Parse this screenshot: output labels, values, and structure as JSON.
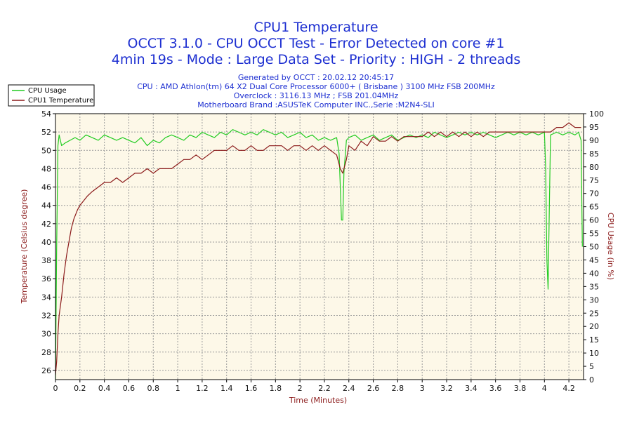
{
  "chart_data": {
    "type": "line",
    "title": "CPU1 Temperature",
    "subtitle_lines": [
      "OCCT 3.1.0 - CPU OCCT Test - Error Detected on core #1",
      "4min 19s - Mode : Large Data Set - Priority : HIGH - 2 threads"
    ],
    "info_lines": [
      "Generated by OCCT : 20.02.12 20:45:17",
      "CPU : AMD Athlon(tm) 64 X2 Dual Core Processor 6000+ ( Brisbane ) 3100 MHz FSB 200MHz",
      "Overclock : 3116.13 MHz ; FSB 201.04MHz",
      "Motherboard Brand :ASUSTeK Computer INC.,Serie :M2N4-SLI"
    ],
    "xlabel": "Time (Minutes)",
    "ylabel": "Temperature (Celsius degree)",
    "y2label": "CPU Usage (in %)",
    "xlim": [
      0,
      4.32
    ],
    "ylim": [
      25,
      54
    ],
    "y2lim": [
      0,
      100
    ],
    "x_ticks": [
      "0",
      "0.2",
      "0.4",
      "0.6",
      "0.8",
      "1",
      "1.2",
      "1.4",
      "1.6",
      "1.8",
      "2",
      "2.2",
      "2.4",
      "2.6",
      "2.8",
      "3",
      "3.2",
      "3.4",
      "3.6",
      "3.8",
      "4",
      "4.2"
    ],
    "y_ticks": [
      "26",
      "28",
      "30",
      "32",
      "34",
      "36",
      "38",
      "40",
      "42",
      "44",
      "46",
      "48",
      "50",
      "52",
      "54"
    ],
    "y2_ticks": [
      "0",
      "5",
      "10",
      "15",
      "20",
      "25",
      "30",
      "35",
      "40",
      "45",
      "50",
      "55",
      "60",
      "65",
      "70",
      "75",
      "80",
      "85",
      "90",
      "95",
      "100"
    ],
    "grid": true,
    "legend_position": "top-left-outside",
    "colors": {
      "usage": "#22cc22",
      "temperature": "#8b1a1a",
      "plot_bg": "#fdf8e8",
      "grid": "#9a9a9a",
      "title": "#1d2fd1"
    },
    "series": [
      {
        "name": "CPU Usage",
        "axis": "right",
        "points": [
          [
            0,
            0
          ],
          [
            0.01,
            50
          ],
          [
            0.02,
            88
          ],
          [
            0.03,
            92
          ],
          [
            0.05,
            88
          ],
          [
            0.08,
            89
          ],
          [
            0.12,
            90
          ],
          [
            0.16,
            91
          ],
          [
            0.2,
            90
          ],
          [
            0.25,
            92
          ],
          [
            0.3,
            91
          ],
          [
            0.35,
            90
          ],
          [
            0.4,
            92
          ],
          [
            0.45,
            91
          ],
          [
            0.5,
            90
          ],
          [
            0.55,
            91
          ],
          [
            0.6,
            90
          ],
          [
            0.65,
            89
          ],
          [
            0.7,
            91
          ],
          [
            0.75,
            88
          ],
          [
            0.8,
            90
          ],
          [
            0.85,
            89
          ],
          [
            0.9,
            91
          ],
          [
            0.95,
            92
          ],
          [
            1,
            91
          ],
          [
            1.05,
            90
          ],
          [
            1.1,
            92
          ],
          [
            1.15,
            91
          ],
          [
            1.2,
            93
          ],
          [
            1.25,
            92
          ],
          [
            1.3,
            91
          ],
          [
            1.35,
            93
          ],
          [
            1.4,
            92
          ],
          [
            1.45,
            94
          ],
          [
            1.5,
            93
          ],
          [
            1.55,
            92
          ],
          [
            1.6,
            93
          ],
          [
            1.65,
            92
          ],
          [
            1.7,
            94
          ],
          [
            1.75,
            93
          ],
          [
            1.8,
            92
          ],
          [
            1.85,
            93
          ],
          [
            1.9,
            91
          ],
          [
            1.95,
            92
          ],
          [
            2,
            93
          ],
          [
            2.05,
            91
          ],
          [
            2.1,
            92
          ],
          [
            2.15,
            90
          ],
          [
            2.2,
            91
          ],
          [
            2.25,
            90
          ],
          [
            2.3,
            91
          ],
          [
            2.32,
            85
          ],
          [
            2.34,
            60
          ],
          [
            2.35,
            60
          ],
          [
            2.36,
            78
          ],
          [
            2.38,
            90
          ],
          [
            2.4,
            91
          ],
          [
            2.45,
            92
          ],
          [
            2.5,
            90
          ],
          [
            2.55,
            91
          ],
          [
            2.6,
            92
          ],
          [
            2.65,
            90
          ],
          [
            2.7,
            91
          ],
          [
            2.75,
            92
          ],
          [
            2.8,
            90
          ],
          [
            2.85,
            91
          ],
          [
            2.9,
            92
          ],
          [
            2.95,
            91
          ],
          [
            3,
            92
          ],
          [
            3.05,
            91
          ],
          [
            3.1,
            93
          ],
          [
            3.15,
            92
          ],
          [
            3.2,
            91
          ],
          [
            3.25,
            92
          ],
          [
            3.3,
            93
          ],
          [
            3.35,
            92
          ],
          [
            3.4,
            93
          ],
          [
            3.45,
            92
          ],
          [
            3.5,
            93
          ],
          [
            3.55,
            92
          ],
          [
            3.6,
            91
          ],
          [
            3.65,
            92
          ],
          [
            3.7,
            93
          ],
          [
            3.75,
            92
          ],
          [
            3.8,
            93
          ],
          [
            3.85,
            92
          ],
          [
            3.9,
            93
          ],
          [
            3.95,
            92
          ],
          [
            4,
            93
          ],
          [
            4.01,
            80
          ],
          [
            4.02,
            45
          ],
          [
            4.03,
            34
          ],
          [
            4.04,
            65
          ],
          [
            4.05,
            92
          ],
          [
            4.1,
            93
          ],
          [
            4.15,
            92
          ],
          [
            4.2,
            93
          ],
          [
            4.25,
            92
          ],
          [
            4.28,
            93
          ],
          [
            4.3,
            90
          ],
          [
            4.31,
            50
          ]
        ]
      },
      {
        "name": "CPU1 Temperature",
        "axis": "left",
        "points": [
          [
            0,
            25.5
          ],
          [
            0.01,
            27
          ],
          [
            0.02,
            30
          ],
          [
            0.03,
            32
          ],
          [
            0.05,
            34
          ],
          [
            0.07,
            36.5
          ],
          [
            0.09,
            38.5
          ],
          [
            0.11,
            40
          ],
          [
            0.13,
            41.5
          ],
          [
            0.15,
            42.5
          ],
          [
            0.18,
            43.5
          ],
          [
            0.2,
            44
          ],
          [
            0.23,
            44.5
          ],
          [
            0.26,
            45
          ],
          [
            0.3,
            45.5
          ],
          [
            0.35,
            46
          ],
          [
            0.4,
            46.5
          ],
          [
            0.45,
            46.5
          ],
          [
            0.5,
            47
          ],
          [
            0.55,
            46.5
          ],
          [
            0.6,
            47
          ],
          [
            0.65,
            47.5
          ],
          [
            0.7,
            47.5
          ],
          [
            0.75,
            48
          ],
          [
            0.8,
            47.5
          ],
          [
            0.85,
            48
          ],
          [
            0.9,
            48
          ],
          [
            0.95,
            48
          ],
          [
            1,
            48.5
          ],
          [
            1.05,
            49
          ],
          [
            1.1,
            49
          ],
          [
            1.15,
            49.5
          ],
          [
            1.2,
            49
          ],
          [
            1.25,
            49.5
          ],
          [
            1.3,
            50
          ],
          [
            1.35,
            50
          ],
          [
            1.4,
            50
          ],
          [
            1.45,
            50.5
          ],
          [
            1.5,
            50
          ],
          [
            1.55,
            50
          ],
          [
            1.6,
            50.5
          ],
          [
            1.65,
            50
          ],
          [
            1.7,
            50
          ],
          [
            1.75,
            50.5
          ],
          [
            1.8,
            50.5
          ],
          [
            1.85,
            50.5
          ],
          [
            1.9,
            50
          ],
          [
            1.95,
            50.5
          ],
          [
            2,
            50.5
          ],
          [
            2.05,
            50
          ],
          [
            2.1,
            50.5
          ],
          [
            2.15,
            50
          ],
          [
            2.2,
            50.5
          ],
          [
            2.25,
            50
          ],
          [
            2.3,
            49.5
          ],
          [
            2.33,
            48
          ],
          [
            2.35,
            47.5
          ],
          [
            2.38,
            49
          ],
          [
            2.4,
            50.5
          ],
          [
            2.45,
            50
          ],
          [
            2.5,
            51
          ],
          [
            2.55,
            50.5
          ],
          [
            2.6,
            51.5
          ],
          [
            2.65,
            51
          ],
          [
            2.7,
            51
          ],
          [
            2.75,
            51.5
          ],
          [
            2.8,
            51
          ],
          [
            2.85,
            51.5
          ],
          [
            2.9,
            51.5
          ],
          [
            2.95,
            51.5
          ],
          [
            3,
            51.5
          ],
          [
            3.05,
            52
          ],
          [
            3.1,
            51.5
          ],
          [
            3.15,
            52
          ],
          [
            3.2,
            51.5
          ],
          [
            3.25,
            52
          ],
          [
            3.3,
            51.5
          ],
          [
            3.35,
            52
          ],
          [
            3.4,
            51.5
          ],
          [
            3.45,
            52
          ],
          [
            3.5,
            51.5
          ],
          [
            3.55,
            52
          ],
          [
            3.6,
            52
          ],
          [
            3.65,
            52
          ],
          [
            3.7,
            52
          ],
          [
            3.75,
            52
          ],
          [
            3.8,
            52
          ],
          [
            3.85,
            52
          ],
          [
            3.9,
            52
          ],
          [
            3.95,
            52
          ],
          [
            4,
            52
          ],
          [
            4.05,
            52
          ],
          [
            4.1,
            52.5
          ],
          [
            4.15,
            52.5
          ],
          [
            4.2,
            53
          ],
          [
            4.25,
            52.5
          ],
          [
            4.3,
            52.5
          ]
        ]
      }
    ]
  }
}
